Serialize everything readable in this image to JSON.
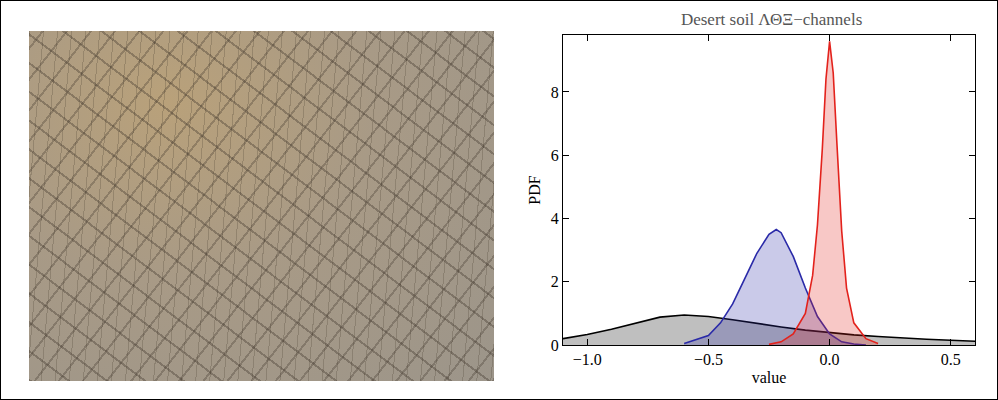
{
  "chart_data": {
    "type": "area",
    "title": "Desert soil ΛΘΞ−channels",
    "x_label": "value",
    "y_label": "PDF",
    "xlim": [
      -1.1,
      0.6
    ],
    "xticks": [
      {
        "value": -1.0,
        "label": "−1.0"
      },
      {
        "value": -0.5,
        "label": "−0.5"
      },
      {
        "value": 0.0,
        "label": "0.0"
      },
      {
        "value": 0.5,
        "label": "0.5"
      }
    ],
    "ylim": [
      0,
      9.8
    ],
    "yticks": [
      0,
      2,
      4,
      6,
      8
    ],
    "grid": false,
    "series": [
      {
        "color": "#000000",
        "x": [
          -1.1,
          -1.0,
          -0.9,
          -0.8,
          -0.7,
          -0.6,
          -0.5,
          -0.4,
          -0.3,
          -0.2,
          -0.1,
          0.0,
          0.1,
          0.2,
          0.3,
          0.4,
          0.5,
          0.6
        ],
        "values": [
          0.2,
          0.33,
          0.5,
          0.7,
          0.88,
          0.95,
          0.9,
          0.8,
          0.68,
          0.57,
          0.47,
          0.39,
          0.32,
          0.27,
          0.22,
          0.18,
          0.15,
          0.12
        ]
      },
      {
        "color": "#2a2aa8",
        "x": [
          -0.6,
          -0.5,
          -0.45,
          -0.4,
          -0.35,
          -0.3,
          -0.25,
          -0.22,
          -0.2,
          -0.15,
          -0.1,
          -0.05,
          0.0,
          0.05,
          0.1,
          0.15
        ],
        "values": [
          0.05,
          0.3,
          0.7,
          1.3,
          2.1,
          2.9,
          3.5,
          3.65,
          3.55,
          2.8,
          1.8,
          0.9,
          0.35,
          0.1,
          0.03,
          0
        ]
      },
      {
        "color": "#e3221c",
        "x": [
          -0.25,
          -0.2,
          -0.15,
          -0.1,
          -0.07,
          -0.05,
          -0.03,
          -0.015,
          0.0,
          0.015,
          0.03,
          0.05,
          0.07,
          0.1,
          0.15,
          0.2
        ],
        "values": [
          0.02,
          0.1,
          0.35,
          1.0,
          2.2,
          3.8,
          6.2,
          8.4,
          9.6,
          8.6,
          6.4,
          3.6,
          1.8,
          0.7,
          0.2,
          0.05
        ]
      }
    ]
  }
}
